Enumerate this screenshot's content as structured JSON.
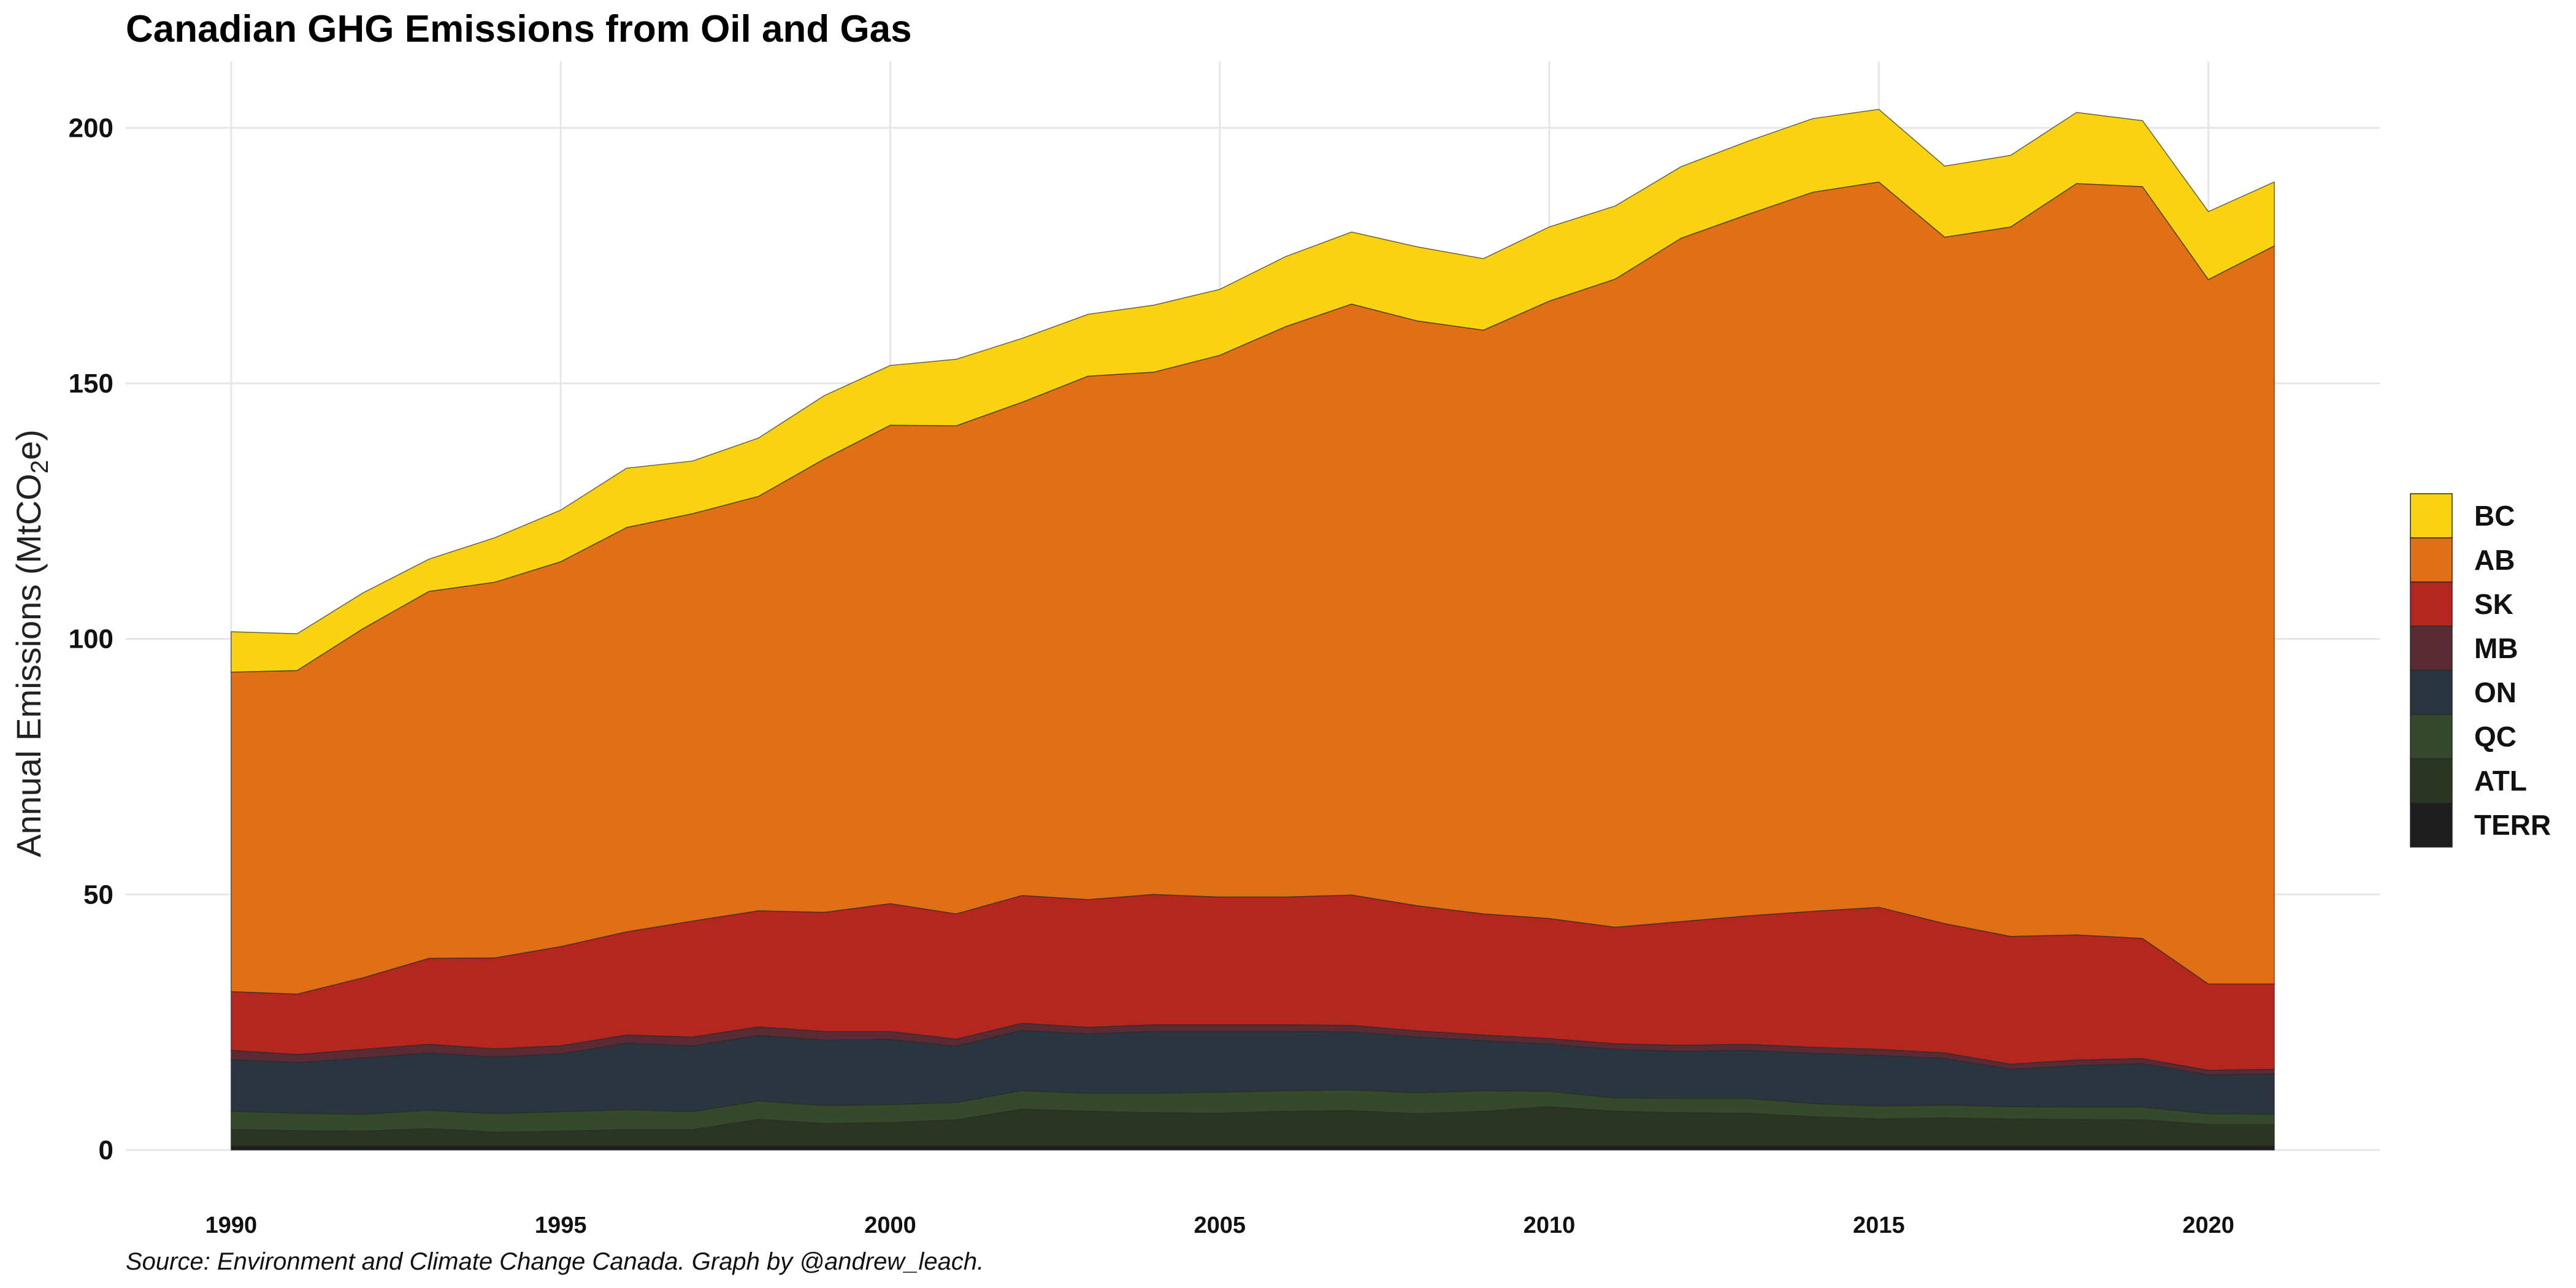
{
  "chart_data": {
    "type": "area",
    "stacked": true,
    "title": "Canadian GHG Emissions from Oil and Gas",
    "ylabel_prefix": "Annual Emissions  (MtCO",
    "ylabel_sub": "2",
    "ylabel_suffix": "e)",
    "caption": "Source: Environment and Climate Change Canada. Graph by @andrew_leach.",
    "xlim": [
      1988.4,
      2022.6
    ],
    "ylim": [
      0,
      213
    ],
    "x_ticks": [
      "1990",
      "1995",
      "2000",
      "2005",
      "2010",
      "2015",
      "2020"
    ],
    "y_ticks": [
      "0",
      "50",
      "100",
      "150",
      "200"
    ],
    "grid": true,
    "legend_position": "right",
    "x": [
      1990,
      1991,
      1992,
      1993,
      1994,
      1995,
      1996,
      1997,
      1998,
      1999,
      2000,
      2001,
      2002,
      2003,
      2004,
      2005,
      2006,
      2007,
      2008,
      2009,
      2010,
      2011,
      2012,
      2013,
      2014,
      2015,
      2016,
      2017,
      2018,
      2019,
      2020,
      2021
    ],
    "series": [
      {
        "name": "TERR",
        "color": "#1e1e1e",
        "values": [
          0.8,
          0.8,
          0.8,
          0.8,
          0.8,
          0.8,
          0.8,
          0.8,
          0.8,
          0.8,
          0.8,
          0.8,
          0.8,
          0.8,
          0.8,
          0.8,
          0.8,
          0.8,
          0.8,
          0.8,
          0.8,
          0.8,
          0.8,
          0.8,
          0.8,
          0.8,
          0.8,
          0.8,
          0.8,
          0.8,
          0.8,
          0.8
        ]
      },
      {
        "name": "ATL",
        "color": "#2a3522",
        "values": [
          3.2,
          3.0,
          2.9,
          3.4,
          2.7,
          2.9,
          3.2,
          3.2,
          5.2,
          4.4,
          4.6,
          5.1,
          7.2,
          6.8,
          6.5,
          6.4,
          6.8,
          6.9,
          6.3,
          6.8,
          7.7,
          6.8,
          6.5,
          6.4,
          5.7,
          5.3,
          5.5,
          5.3,
          5.2,
          5.1,
          4.2,
          4.2
        ]
      },
      {
        "name": "QC",
        "color": "#344a2a",
        "values": [
          3.6,
          3.4,
          3.3,
          3.6,
          3.6,
          3.8,
          3.9,
          3.5,
          3.6,
          3.5,
          3.5,
          3.4,
          3.6,
          3.5,
          3.8,
          4.1,
          4.0,
          4.1,
          4.1,
          4.0,
          3.0,
          2.6,
          2.8,
          2.9,
          2.6,
          2.5,
          2.5,
          2.4,
          2.4,
          2.5,
          2.1,
          2.0
        ]
      },
      {
        "name": "ON",
        "color": "#2b3540",
        "values": [
          10.1,
          9.9,
          11.0,
          11.2,
          11.1,
          11.3,
          13.0,
          12.9,
          12.8,
          12.8,
          12.7,
          11.0,
          11.8,
          11.6,
          12.1,
          11.9,
          11.6,
          11.3,
          10.9,
          9.8,
          9.2,
          9.5,
          9.2,
          9.4,
          9.8,
          9.9,
          9.1,
          7.3,
          8.1,
          8.5,
          7.6,
          7.9
        ]
      },
      {
        "name": "MB",
        "color": "#5a2a35",
        "values": [
          1.8,
          1.6,
          1.7,
          1.7,
          1.6,
          1.6,
          1.6,
          1.7,
          1.7,
          1.7,
          1.6,
          1.4,
          1.4,
          1.3,
          1.3,
          1.3,
          1.3,
          1.3,
          1.2,
          1.1,
          1.1,
          1.1,
          1.2,
          1.2,
          1.2,
          1.2,
          1.1,
          1.0,
          1.1,
          1.0,
          0.9,
          0.9
        ]
      },
      {
        "name": "SK",
        "color": "#b5261f",
        "values": [
          11.5,
          11.8,
          14.0,
          16.8,
          17.8,
          19.4,
          20.2,
          22.7,
          22.7,
          23.3,
          25.0,
          24.5,
          25.0,
          25.0,
          25.5,
          25.0,
          25.0,
          25.5,
          24.5,
          23.7,
          23.5,
          22.8,
          24.2,
          25.1,
          26.6,
          27.8,
          25.3,
          25.0,
          24.5,
          23.5,
          16.9,
          16.7
        ]
      },
      {
        "name": "AB",
        "color": "#e06f15",
        "values": [
          62.5,
          63.3,
          68.3,
          71.8,
          73.5,
          75.3,
          79.1,
          79.7,
          81.1,
          88.7,
          93.6,
          95.5,
          96.5,
          102.4,
          102.2,
          106.0,
          111.6,
          115.6,
          114.4,
          114.2,
          120.8,
          126.8,
          133.7,
          137.2,
          140.7,
          141.9,
          134.3,
          138.8,
          147.0,
          147.1,
          137.8,
          144.4
        ]
      },
      {
        "name": "BC",
        "color": "#f9d30f",
        "values": [
          7.9,
          7.2,
          7.0,
          6.3,
          8.7,
          10.1,
          11.6,
          10.3,
          11.4,
          12.4,
          11.7,
          13.0,
          12.5,
          12.1,
          13.1,
          12.9,
          13.7,
          14.1,
          14.5,
          14.0,
          14.5,
          14.3,
          14.0,
          14.3,
          14.4,
          14.2,
          13.9,
          14.0,
          13.9,
          12.9,
          13.3,
          12.5
        ]
      }
    ]
  }
}
